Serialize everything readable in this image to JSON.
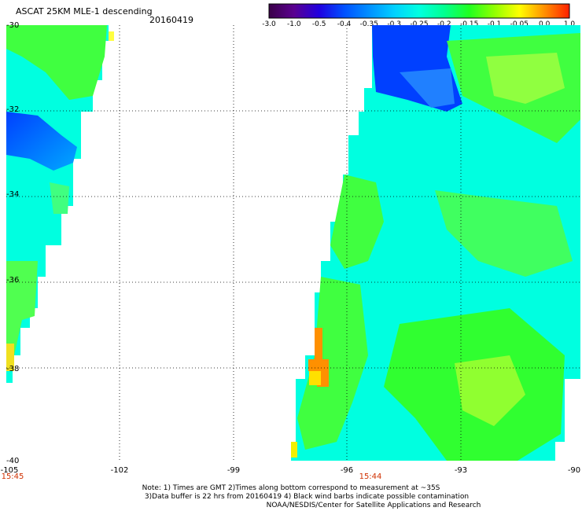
{
  "header": {
    "title": "ASCAT 25KM MLE-1 descending",
    "date": "20160419"
  },
  "colorbar": {
    "ticks": [
      "-3.0",
      "-1.0",
      "-0.5",
      "-0.4",
      "-0.35",
      "-0.3",
      "-0.25",
      "-0.2",
      "-0.15",
      "-0.1",
      "-0.05",
      "0.0",
      "1.0"
    ],
    "colors": [
      "#3a0048",
      "#5a0090",
      "#2000e0",
      "#0050ff",
      "#0090ff",
      "#00d0ff",
      "#00ffe0",
      "#00ff90",
      "#20ff20",
      "#90ff00",
      "#ffff00",
      "#ff9000",
      "#ff2000"
    ]
  },
  "map": {
    "lat_labels": [
      "-30",
      "-32",
      "-34",
      "-36",
      "-38",
      "-40"
    ],
    "lon_labels": [
      "-105",
      "-102",
      "-99",
      "-96",
      "-93",
      "-90"
    ],
    "time_labels": [
      "15:45",
      "15:44"
    ]
  },
  "notes": {
    "line1": "Note: 1) Times are GMT 2)Times along bottom correspond to measurement at ~35S",
    "line2": "3)Data buffer is 22 hrs from 20160419 4) Black wind barbs indicate possible contamination",
    "line3": "NOAA/NESDIS/Center for Satellite Applications and Research"
  }
}
